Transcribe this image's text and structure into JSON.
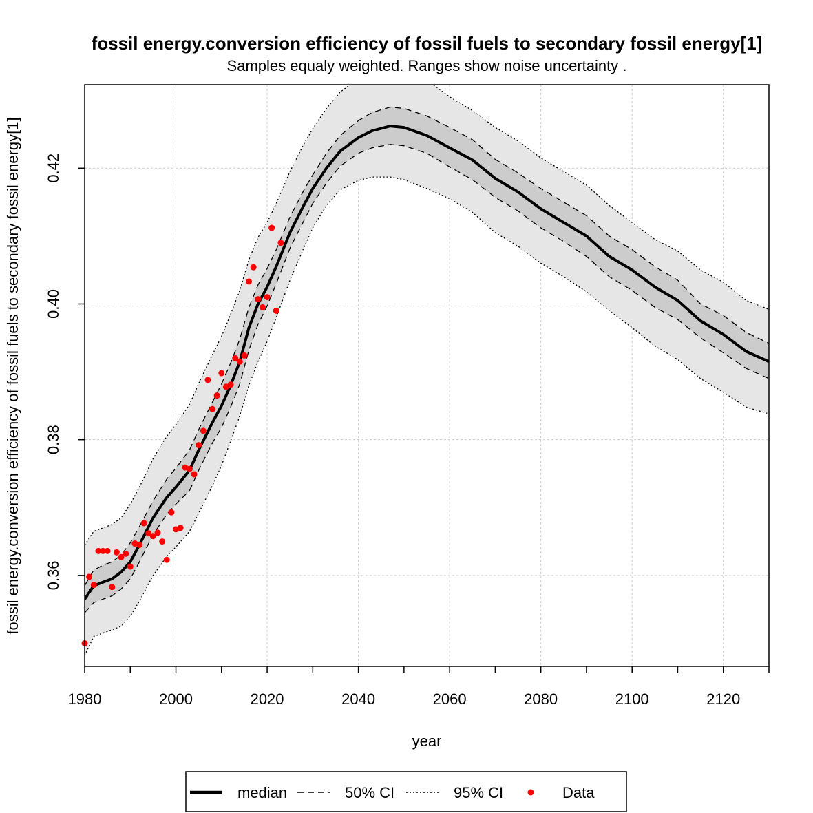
{
  "chart_data": {
    "type": "line",
    "title": "fossil energy.conversion efficiency of fossil fuels to secondary fossil energy[1]",
    "subtitle": "Samples equaly weighted. Ranges show  noise uncertainty .",
    "xlabel": "year",
    "ylabel": "fossil energy.conversion efficiency of fossil fuels to secondary fossil energy[1]",
    "xlim": [
      1980,
      2130
    ],
    "ylim": [
      0.3466,
      0.4323
    ],
    "x_ticks": [
      1980,
      1990,
      2000,
      2010,
      2020,
      2030,
      2040,
      2050,
      2060,
      2070,
      2080,
      2090,
      2100,
      2110,
      2120,
      2130
    ],
    "x_tick_labels": [
      "1980",
      "2000",
      "2020",
      "2040",
      "2060",
      "2080",
      "2100",
      "2120"
    ],
    "x_tick_label_values": [
      1980,
      2000,
      2020,
      2040,
      2060,
      2080,
      2100,
      2120
    ],
    "y_ticks": [
      0.36,
      0.38,
      0.4,
      0.42
    ],
    "y_tick_labels": [
      "0.36",
      "0.38",
      "0.40",
      "0.42"
    ],
    "grid": true,
    "legend_position": "bottom-outside",
    "legend": [
      {
        "label": "median",
        "style": "solid-thick"
      },
      {
        "label": "50% CI",
        "style": "dashed"
      },
      {
        "label": "95% CI",
        "style": "dotted"
      },
      {
        "label": "Data",
        "style": "point"
      }
    ],
    "colors": {
      "median": "#000000",
      "band_95": "#e6e6e6",
      "band_50": "#cccccc",
      "data": "#ff0000",
      "grid": "#cccccc"
    },
    "series": [
      {
        "name": "median",
        "x": [
          1980,
          1982,
          1984,
          1986,
          1988,
          1990,
          1992,
          1995,
          1998,
          2000,
          2003,
          2005,
          2008,
          2010,
          2012,
          2014,
          2016,
          2018,
          2020,
          2022,
          2025,
          2028,
          2030,
          2033,
          2036,
          2040,
          2043,
          2047,
          2050,
          2055,
          2060,
          2065,
          2070,
          2075,
          2080,
          2085,
          2090,
          2095,
          2100,
          2105,
          2110,
          2115,
          2120,
          2125,
          2130
        ],
        "y": [
          0.3565,
          0.3585,
          0.359,
          0.3595,
          0.3605,
          0.362,
          0.3645,
          0.3685,
          0.3715,
          0.373,
          0.3755,
          0.3785,
          0.3825,
          0.385,
          0.388,
          0.3915,
          0.3965,
          0.4,
          0.4025,
          0.4055,
          0.4105,
          0.4145,
          0.417,
          0.42,
          0.4225,
          0.4245,
          0.4255,
          0.4262,
          0.426,
          0.4248,
          0.423,
          0.4212,
          0.4185,
          0.4165,
          0.414,
          0.412,
          0.41,
          0.407,
          0.405,
          0.4025,
          0.4005,
          0.3975,
          0.3955,
          0.393,
          0.3915
        ]
      },
      {
        "name": "50% CI upper",
        "x": [
          1980,
          1982,
          1984,
          1986,
          1988,
          1990,
          1992,
          1995,
          1998,
          2000,
          2003,
          2005,
          2008,
          2010,
          2012,
          2014,
          2016,
          2018,
          2020,
          2022,
          2025,
          2028,
          2030,
          2033,
          2036,
          2040,
          2043,
          2047,
          2050,
          2055,
          2060,
          2065,
          2070,
          2075,
          2080,
          2085,
          2090,
          2095,
          2100,
          2105,
          2110,
          2115,
          2120,
          2125,
          2130
        ],
        "y": [
          0.3585,
          0.3608,
          0.3615,
          0.362,
          0.363,
          0.3648,
          0.3672,
          0.371,
          0.3742,
          0.3758,
          0.3785,
          0.3815,
          0.3855,
          0.3882,
          0.3913,
          0.3948,
          0.3995,
          0.4028,
          0.4052,
          0.408,
          0.4128,
          0.4167,
          0.419,
          0.4222,
          0.4248,
          0.427,
          0.4282,
          0.429,
          0.4288,
          0.4277,
          0.426,
          0.4242,
          0.4213,
          0.4193,
          0.417,
          0.415,
          0.413,
          0.41,
          0.408,
          0.4055,
          0.4035,
          0.4,
          0.3983,
          0.3958,
          0.3942
        ]
      },
      {
        "name": "50% CI lower",
        "x": [
          1980,
          1982,
          1984,
          1986,
          1988,
          1990,
          1992,
          1995,
          1998,
          2000,
          2003,
          2005,
          2008,
          2010,
          2012,
          2014,
          2016,
          2018,
          2020,
          2022,
          2025,
          2028,
          2030,
          2033,
          2036,
          2040,
          2043,
          2047,
          2050,
          2055,
          2060,
          2065,
          2070,
          2075,
          2080,
          2085,
          2090,
          2095,
          2100,
          2105,
          2110,
          2115,
          2120,
          2125,
          2130
        ],
        "y": [
          0.3545,
          0.356,
          0.3565,
          0.357,
          0.358,
          0.3595,
          0.362,
          0.366,
          0.369,
          0.3705,
          0.3725,
          0.3755,
          0.3795,
          0.3818,
          0.3848,
          0.3882,
          0.3932,
          0.397,
          0.3997,
          0.403,
          0.4082,
          0.4122,
          0.4148,
          0.4178,
          0.4203,
          0.4222,
          0.423,
          0.4235,
          0.4233,
          0.4222,
          0.4202,
          0.4183,
          0.4157,
          0.4137,
          0.4112,
          0.4092,
          0.407,
          0.404,
          0.402,
          0.3995,
          0.3977,
          0.395,
          0.3928,
          0.3905,
          0.389
        ]
      },
      {
        "name": "95% CI upper",
        "x": [
          1980,
          1982,
          1984,
          1986,
          1988,
          1990,
          1992,
          1995,
          1998,
          2000,
          2003,
          2005,
          2008,
          2010,
          2012,
          2014,
          2016,
          2018,
          2020,
          2022,
          2025,
          2028,
          2030,
          2033,
          2036,
          2040,
          2043,
          2047,
          2050,
          2055,
          2060,
          2065,
          2070,
          2075,
          2080,
          2085,
          2090,
          2095,
          2100,
          2105,
          2110,
          2115,
          2120,
          2125,
          2130
        ],
        "y": [
          0.3645,
          0.3665,
          0.367,
          0.3675,
          0.3685,
          0.3705,
          0.373,
          0.3772,
          0.3805,
          0.3822,
          0.3852,
          0.3883,
          0.3925,
          0.3952,
          0.3985,
          0.402,
          0.4065,
          0.4098,
          0.412,
          0.4148,
          0.4195,
          0.4235,
          0.4258,
          0.4288,
          0.4312,
          0.4332,
          0.4345,
          0.435,
          0.4345,
          0.433,
          0.4305,
          0.4285,
          0.426,
          0.424,
          0.4215,
          0.4195,
          0.4175,
          0.4145,
          0.412,
          0.4095,
          0.4078,
          0.405,
          0.4032,
          0.4005,
          0.3992
        ]
      },
      {
        "name": "95% CI lower",
        "x": [
          1980,
          1982,
          1984,
          1986,
          1988,
          1990,
          1992,
          1995,
          1998,
          2000,
          2003,
          2005,
          2008,
          2010,
          2012,
          2014,
          2016,
          2018,
          2020,
          2022,
          2025,
          2028,
          2030,
          2033,
          2036,
          2040,
          2043,
          2047,
          2050,
          2055,
          2060,
          2065,
          2070,
          2075,
          2080,
          2085,
          2090,
          2095,
          2100,
          2105,
          2110,
          2115,
          2120,
          2125,
          2130
        ],
        "y": [
          0.3482,
          0.351,
          0.3515,
          0.352,
          0.3525,
          0.354,
          0.3562,
          0.36,
          0.3628,
          0.3642,
          0.3665,
          0.3692,
          0.3732,
          0.3762,
          0.3798,
          0.3835,
          0.388,
          0.3915,
          0.3945,
          0.398,
          0.4035,
          0.4082,
          0.4112,
          0.4145,
          0.4168,
          0.4182,
          0.4187,
          0.4187,
          0.4183,
          0.417,
          0.4155,
          0.4135,
          0.4105,
          0.4085,
          0.406,
          0.404,
          0.4018,
          0.399,
          0.3965,
          0.3938,
          0.3918,
          0.389,
          0.387,
          0.3848,
          0.3838
        ]
      },
      {
        "name": "Data",
        "x": [
          1980,
          1981,
          1982,
          1983,
          1984,
          1985,
          1986,
          1987,
          1988,
          1989,
          1990,
          1991,
          1992,
          1993,
          1994,
          1995,
          1996,
          1997,
          1998,
          1999,
          2000,
          2001,
          2002,
          2003,
          2004,
          2005,
          2006,
          2007,
          2008,
          2009,
          2010,
          2011,
          2012,
          2013,
          2014,
          2015,
          2016,
          2017,
          2018,
          2019,
          2020,
          2021,
          2022,
          2023
        ],
        "y": [
          0.35,
          0.3598,
          0.3586,
          0.3636,
          0.3636,
          0.3636,
          0.3583,
          0.3634,
          0.3627,
          0.3632,
          0.3613,
          0.3647,
          0.3645,
          0.3677,
          0.3662,
          0.3658,
          0.3663,
          0.365,
          0.3623,
          0.3693,
          0.3668,
          0.367,
          0.3759,
          0.3757,
          0.3749,
          0.3792,
          0.3813,
          0.3888,
          0.3845,
          0.3865,
          0.3898,
          0.3878,
          0.3881,
          0.392,
          0.3915,
          0.3924,
          0.4033,
          0.4054,
          0.4007,
          0.3995,
          0.401,
          0.4112,
          0.399,
          0.409
        ]
      }
    ]
  }
}
